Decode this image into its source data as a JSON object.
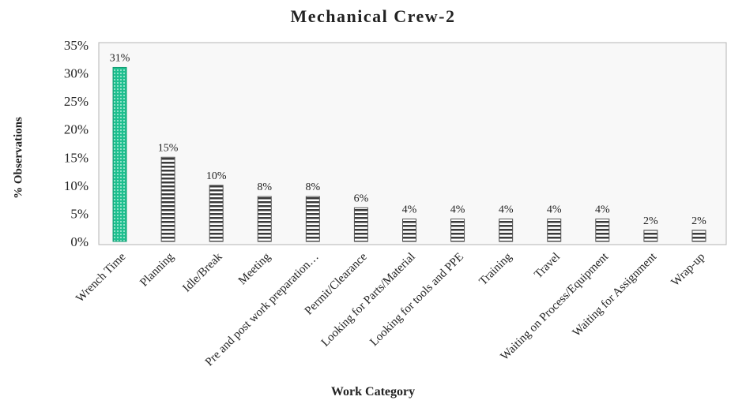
{
  "chart_data": {
    "type": "bar",
    "title": "Mechanical Crew-2",
    "xlabel": "Work Category",
    "ylabel": "% Observations",
    "categories": [
      "Wrench Time",
      "Planning",
      "Idle/Break",
      "Meeting",
      "Pre and post work preparation…",
      "Permit/Clearance",
      "Looking for Parts/Material",
      "Looking for tools and PPE",
      "Training",
      "Travel",
      "Waiting on Process/Equipment",
      "Waiting for Assignment",
      "Wrap-up"
    ],
    "values": [
      31,
      15,
      10,
      8,
      8,
      6,
      4,
      4,
      4,
      4,
      4,
      2,
      2
    ],
    "data_labels": [
      "31%",
      "15%",
      "10%",
      "8%",
      "8%",
      "6%",
      "4%",
      "4%",
      "4%",
      "4%",
      "4%",
      "2%",
      "2%"
    ],
    "ylim": [
      0,
      35
    ],
    "yticks": [
      "0%",
      "5%",
      "10%",
      "15%",
      "20%",
      "25%",
      "30%",
      "35%"
    ],
    "grid": false,
    "colors": {
      "highlight": "#1fbf8f",
      "stripe_dark": "#3a3a3a",
      "stripe_light": "#ffffff",
      "plot_bg": "#f8f8f8"
    }
  }
}
